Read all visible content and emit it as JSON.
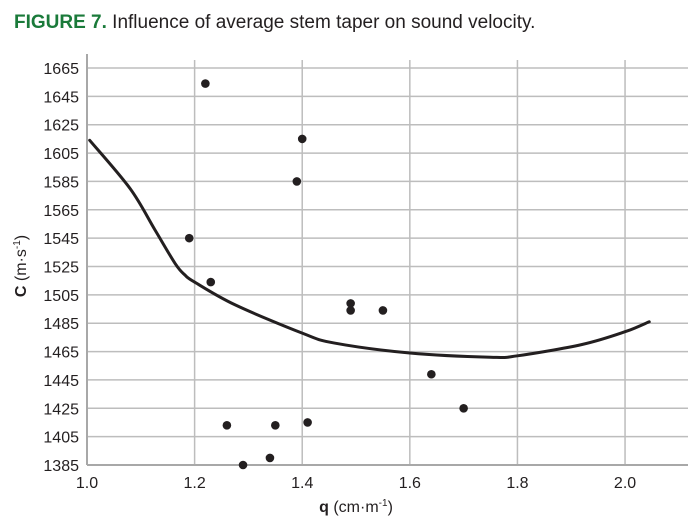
{
  "caption": {
    "figure_label": "FIGURE 7.",
    "text": " Influence of average stem taper on sound velocity."
  },
  "chart_data": {
    "type": "scatter",
    "title": "Influence of average stem taper on sound velocity.",
    "xlabel": "q",
    "xlabel_unit": "(cm·m",
    "xlabel_sup": "-1",
    "xlabel_close": ")",
    "ylabel": "C",
    "ylabel_unit": "(m·s",
    "ylabel_sup": "-1",
    "ylabel_close": ")",
    "xlim": [
      1.0,
      2.117
    ],
    "ylim": [
      1385,
      1665
    ],
    "xticks": [
      1.0,
      1.2,
      1.4,
      1.6,
      1.8,
      2.0
    ],
    "xtick_labels": [
      "1.0",
      "1.2",
      "1.4",
      "1.6",
      "1.8",
      "2.0"
    ],
    "yticks": [
      1385,
      1405,
      1425,
      1445,
      1465,
      1485,
      1505,
      1525,
      1545,
      1565,
      1585,
      1605,
      1625,
      1645,
      1665
    ],
    "ytick_labels": [
      "1385",
      "1405",
      "1425",
      "1445",
      "1465",
      "1485",
      "1505",
      "1525",
      "1545",
      "1565",
      "1585",
      "1605",
      "1625",
      "1645",
      "1665"
    ],
    "grid": true,
    "legend": "none",
    "series": [
      {
        "name": "observations",
        "kind": "scatter",
        "color": "#231f20",
        "points": [
          {
            "x": 1.22,
            "y": 1654
          },
          {
            "x": 1.4,
            "y": 1615
          },
          {
            "x": 1.39,
            "y": 1585
          },
          {
            "x": 1.19,
            "y": 1545
          },
          {
            "x": 1.23,
            "y": 1514
          },
          {
            "x": 1.49,
            "y": 1499
          },
          {
            "x": 1.49,
            "y": 1494
          },
          {
            "x": 1.55,
            "y": 1494
          },
          {
            "x": 1.64,
            "y": 1449
          },
          {
            "x": 1.7,
            "y": 1425
          },
          {
            "x": 1.26,
            "y": 1413
          },
          {
            "x": 1.35,
            "y": 1413
          },
          {
            "x": 1.41,
            "y": 1415
          },
          {
            "x": 1.29,
            "y": 1385
          },
          {
            "x": 1.34,
            "y": 1390
          }
        ]
      },
      {
        "name": "fitted trend",
        "kind": "line",
        "color": "#231f20",
        "points": [
          {
            "x": 1.005,
            "y": 1614
          },
          {
            "x": 1.08,
            "y": 1580
          },
          {
            "x": 1.126,
            "y": 1551
          },
          {
            "x": 1.164,
            "y": 1527
          },
          {
            "x": 1.182,
            "y": 1519
          },
          {
            "x": 1.2,
            "y": 1514
          },
          {
            "x": 1.275,
            "y": 1498
          },
          {
            "x": 1.4,
            "y": 1478
          },
          {
            "x": 1.46,
            "y": 1471
          },
          {
            "x": 1.6,
            "y": 1464
          },
          {
            "x": 1.75,
            "y": 1461
          },
          {
            "x": 1.8,
            "y": 1462
          },
          {
            "x": 1.92,
            "y": 1470
          },
          {
            "x": 2.0,
            "y": 1479
          },
          {
            "x": 2.045,
            "y": 1486
          }
        ]
      }
    ]
  }
}
